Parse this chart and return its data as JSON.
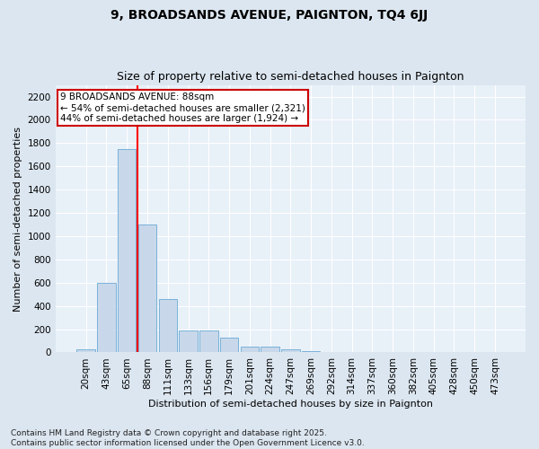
{
  "title": "9, BROADSANDS AVENUE, PAIGNTON, TQ4 6JJ",
  "subtitle": "Size of property relative to semi-detached houses in Paignton",
  "xlabel": "Distribution of semi-detached houses by size in Paignton",
  "ylabel": "Number of semi-detached properties",
  "categories": [
    "20sqm",
    "43sqm",
    "65sqm",
    "88sqm",
    "111sqm",
    "133sqm",
    "156sqm",
    "179sqm",
    "201sqm",
    "224sqm",
    "247sqm",
    "269sqm",
    "292sqm",
    "314sqm",
    "337sqm",
    "360sqm",
    "382sqm",
    "405sqm",
    "428sqm",
    "450sqm",
    "473sqm"
  ],
  "values": [
    30,
    600,
    1750,
    1100,
    460,
    190,
    190,
    130,
    50,
    50,
    30,
    10,
    5,
    5,
    2,
    2,
    1,
    1,
    1,
    1,
    1
  ],
  "bar_color": "#c8d8ea",
  "bar_edge_color": "#6aaad4",
  "red_line_x": 2.5,
  "annotation_line1": "9 BROADSANDS AVENUE: 88sqm",
  "annotation_line2": "← 54% of semi-detached houses are smaller (2,321)",
  "annotation_line3": "44% of semi-detached houses are larger (1,924) →",
  "annotation_box_facecolor": "#ffffff",
  "annotation_box_edgecolor": "#cc0000",
  "ylim": [
    0,
    2300
  ],
  "yticks": [
    0,
    200,
    400,
    600,
    800,
    1000,
    1200,
    1400,
    1600,
    1800,
    2000,
    2200
  ],
  "footer_text": "Contains HM Land Registry data © Crown copyright and database right 2025.\nContains public sector information licensed under the Open Government Licence v3.0.",
  "fig_facecolor": "#dce6f0",
  "plot_facecolor": "#e8f0f8",
  "grid_color": "#ffffff",
  "title_fontsize": 10,
  "subtitle_fontsize": 9,
  "axis_label_fontsize": 8,
  "tick_fontsize": 7.5,
  "annotation_fontsize": 7.5,
  "footer_fontsize": 6.5
}
